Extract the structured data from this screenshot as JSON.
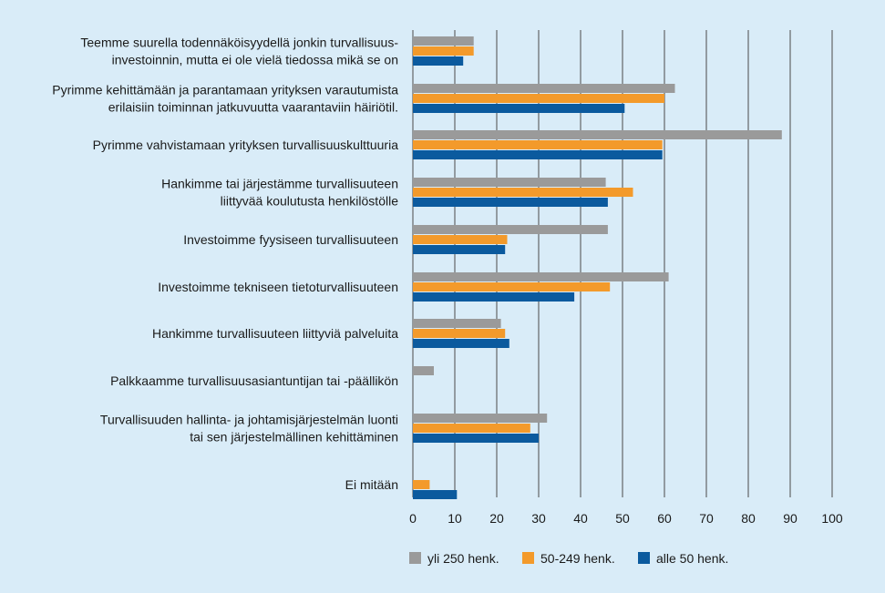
{
  "chart_data": {
    "type": "bar",
    "orientation": "horizontal",
    "categories": [
      [
        "Teemme suurella todennäköisyydellä jonkin turvallisuus-",
        "investoinnin, mutta ei ole vielä tiedossa mikä se on"
      ],
      [
        "Pyrimme kehittämään ja parantamaan yrityksen varautumista",
        "erilaisiin toiminnan jatkuvuutta vaarantaviin häiriötil."
      ],
      [
        "Pyrimme vahvistamaan yrityksen turvallisuuskulttuuria"
      ],
      [
        "Hankimme tai järjestämme turvallisuuteen",
        "liittyvää koulutusta henkilöstölle"
      ],
      [
        "Investoimme fyysiseen turvallisuuteen"
      ],
      [
        "Investoimme tekniseen tietoturvallisuuteen"
      ],
      [
        "Hankimme turvallisuuteen liittyviä palveluita"
      ],
      [
        "Palkkaamme turvallisuusasiantuntijan tai -päällikön"
      ],
      [
        "Turvallisuuden hallinta- ja johtamisjärjestelmän luonti",
        "tai sen järjestelmällinen kehittäminen"
      ],
      [
        "Ei mitään"
      ]
    ],
    "series": [
      {
        "name": "yli 250 henk.",
        "color": "#9a9a9a",
        "values": [
          14.5,
          62.5,
          88,
          46,
          46.5,
          61,
          21,
          5,
          32,
          0
        ]
      },
      {
        "name": "50-249 henk.",
        "color": "#f39a2b",
        "values": [
          14.5,
          60,
          59.5,
          52.5,
          22.5,
          47,
          22,
          0,
          28,
          4
        ]
      },
      {
        "name": "alle 50 henk.",
        "color": "#0b5a9e",
        "values": [
          12,
          50.5,
          59.5,
          46.5,
          22,
          38.5,
          23,
          0,
          30,
          10.5
        ]
      }
    ],
    "xlim": [
      0,
      100
    ],
    "xticks": [
      "0",
      "10",
      "20",
      "30",
      "40",
      "50",
      "60",
      "70",
      "80",
      "90",
      "100"
    ],
    "grid": true,
    "legend_position": "bottom"
  }
}
